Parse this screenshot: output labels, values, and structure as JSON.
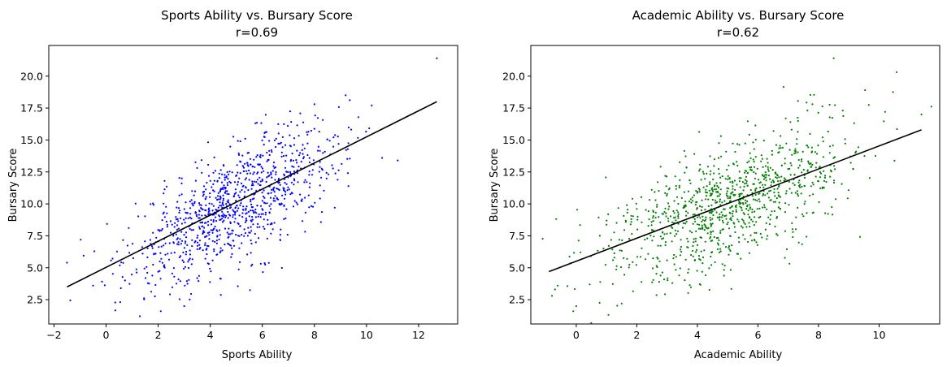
{
  "chart_data": [
    {
      "type": "scatter",
      "title": "Sports Ability vs. Bursary Score",
      "subtitle": "r=0.69",
      "xlabel": "Sports Ability",
      "ylabel": "Bursary Score",
      "xlim": [
        -2.2,
        13.5
      ],
      "ylim": [
        0.6,
        22.4
      ],
      "x_ticks": [
        -2,
        0,
        2,
        4,
        6,
        8,
        10,
        12
      ],
      "y_ticks": [
        2.5,
        5.0,
        7.5,
        10.0,
        12.5,
        15.0,
        17.5,
        20.0
      ],
      "grid": false,
      "point_color": "#0000ff",
      "fit_line_color": "#000000",
      "points_summary": {
        "n": 1000,
        "x_mean": 5.0,
        "x_sd": 2.0,
        "r": 0.69,
        "y_mean": 10.0,
        "y_sd": 3.0
      },
      "highlight_points": [
        [
          12.7,
          21.4
        ],
        [
          -1.5,
          5.4
        ],
        [
          -0.5,
          3.6
        ],
        [
          2.1,
          1.6
        ],
        [
          3.0,
          2.0
        ],
        [
          9.2,
          18.5
        ],
        [
          10.2,
          17.7
        ],
        [
          11.2,
          13.4
        ],
        [
          10.6,
          13.6
        ],
        [
          8.0,
          17.8
        ]
      ],
      "fit_line": {
        "x": [
          -1.5,
          12.7
        ],
        "y": [
          3.5,
          18.0
        ]
      }
    },
    {
      "type": "scatter",
      "title": "Academic Ability vs. Bursary Score",
      "subtitle": "r=0.62",
      "xlabel": "Academic Ability",
      "ylabel": "Bursary Score",
      "xlim": [
        -1.5,
        12.0
      ],
      "ylim": [
        0.6,
        22.4
      ],
      "x_ticks": [
        0,
        2,
        4,
        6,
        8,
        10
      ],
      "y_ticks": [
        2.5,
        5.0,
        7.5,
        10.0,
        12.5,
        15.0,
        17.5,
        20.0
      ],
      "grid": false,
      "point_color": "#008000",
      "fit_line_color": "#000000",
      "points_summary": {
        "n": 1000,
        "x_mean": 5.0,
        "x_sd": 2.0,
        "r": 0.62,
        "y_mean": 10.0,
        "y_sd": 3.0
      },
      "highlight_points": [
        [
          8.5,
          21.4
        ],
        [
          -0.8,
          2.8
        ],
        [
          -0.1,
          1.6
        ],
        [
          0.0,
          2.0
        ],
        [
          11.4,
          17.0
        ],
        [
          10.2,
          17.2
        ],
        [
          7.8,
          17.8
        ],
        [
          1.5,
          2.2
        ],
        [
          -0.7,
          3.3
        ],
        [
          8.8,
          17.3
        ]
      ],
      "fit_line": {
        "x": [
          -0.9,
          11.4
        ],
        "y": [
          4.7,
          15.8
        ]
      }
    }
  ]
}
